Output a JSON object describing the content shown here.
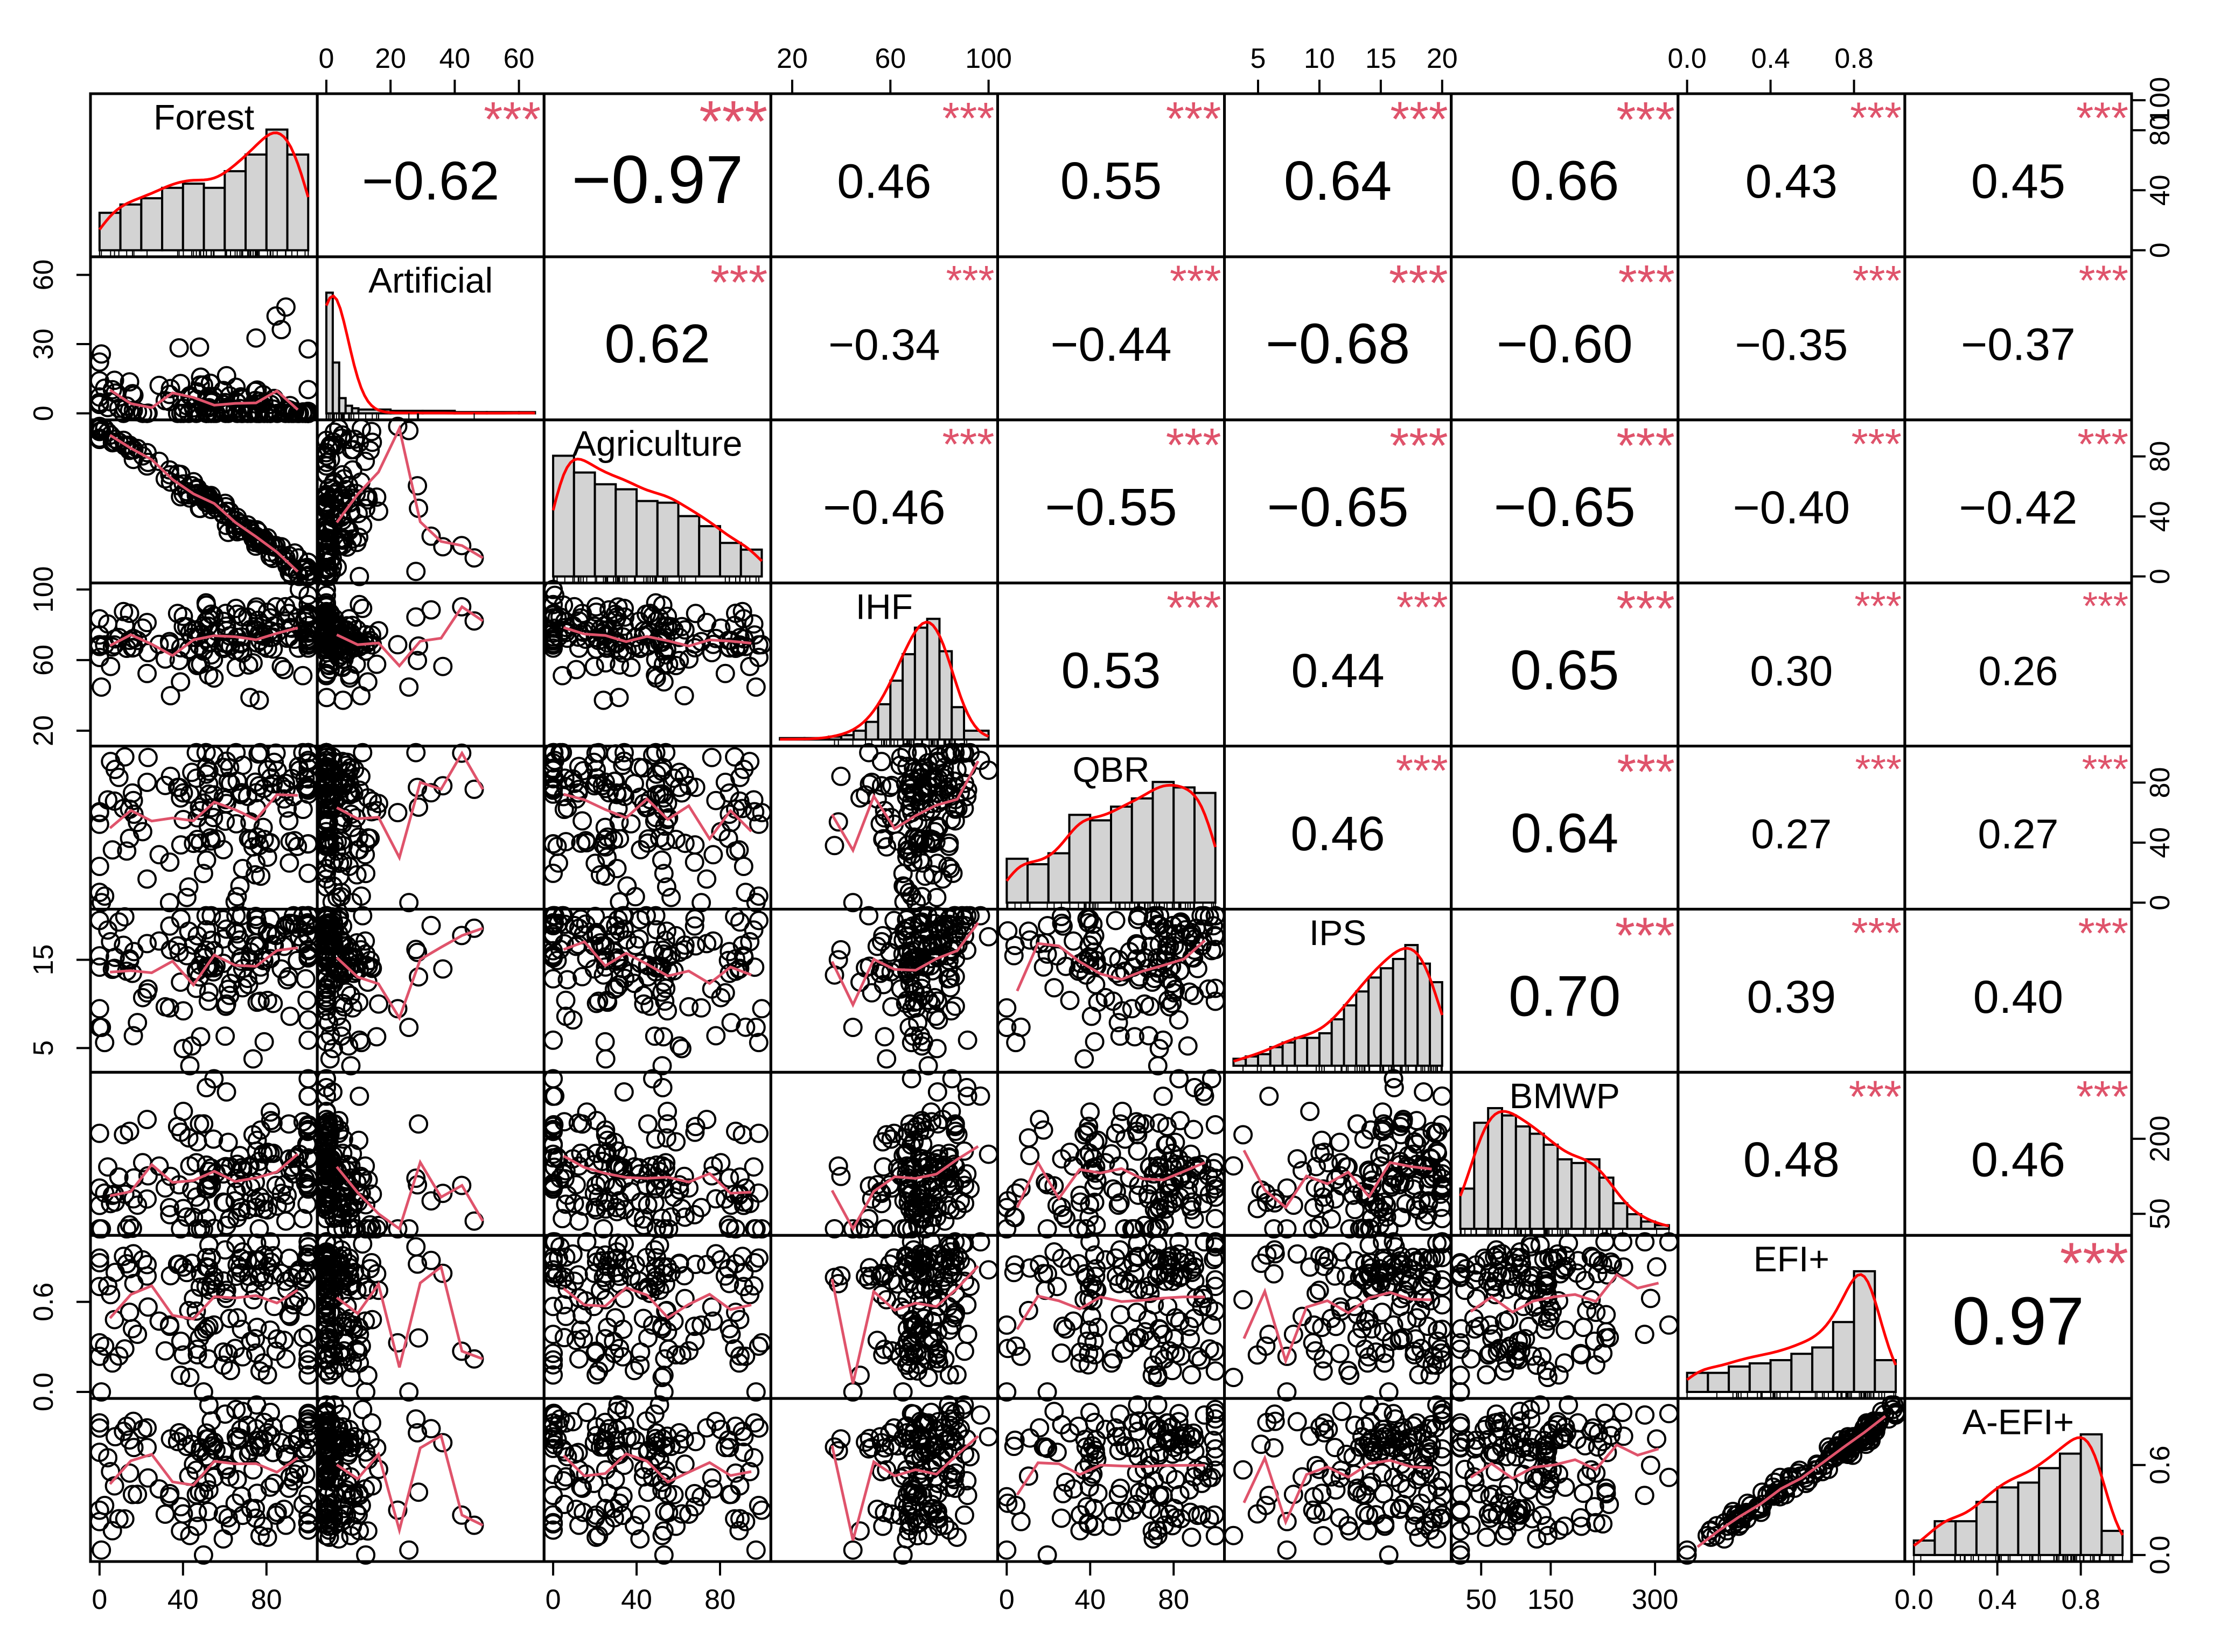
{
  "chart_data": {
    "type": "scatter",
    "layout": "scatterplot-matrix",
    "title": "",
    "variables": [
      "Forest",
      "Artificial",
      "Agriculture",
      "IHF",
      "QBR",
      "IPS",
      "BMWP",
      "EFI+",
      "A-EFI+"
    ],
    "ranges": [
      [
        0,
        100
      ],
      [
        0,
        65
      ],
      [
        0,
        100
      ],
      [
        15,
        100
      ],
      [
        0,
        100
      ],
      [
        3,
        20
      ],
      [
        20,
        320
      ],
      [
        0,
        1
      ],
      [
        0,
        1
      ]
    ],
    "axis_ticks": [
      {
        "variable": "Forest",
        "side": "bottom",
        "ticks": [
          "0",
          "40",
          "80"
        ]
      },
      {
        "variable": "Artificial",
        "side": "top",
        "ticks": [
          "0",
          "20",
          "40",
          "60"
        ]
      },
      {
        "variable": "Artificial",
        "side": "left",
        "ticks": [
          "0",
          "30",
          "60"
        ]
      },
      {
        "variable": "Agriculture",
        "side": "bottom",
        "ticks": [
          "0",
          "40",
          "80"
        ]
      },
      {
        "variable": "Agriculture",
        "side": "right",
        "ticks": [
          "0",
          "40",
          "80"
        ]
      },
      {
        "variable": "IHF",
        "side": "top",
        "ticks": [
          "20",
          "60",
          "100"
        ]
      },
      {
        "variable": "IHF",
        "side": "left",
        "ticks": [
          "20",
          "60",
          "100"
        ]
      },
      {
        "variable": "QBR",
        "side": "bottom",
        "ticks": [
          "0",
          "40",
          "80"
        ]
      },
      {
        "variable": "QBR",
        "side": "right",
        "ticks": [
          "0",
          "40",
          "80"
        ]
      },
      {
        "variable": "IPS",
        "side": "top",
        "ticks": [
          "5",
          "10",
          "15",
          "20"
        ]
      },
      {
        "variable": "IPS",
        "side": "left",
        "ticks": [
          "5",
          "15"
        ]
      },
      {
        "variable": "BMWP",
        "side": "bottom",
        "ticks": [
          "50",
          "150",
          "300"
        ]
      },
      {
        "variable": "BMWP",
        "side": "right",
        "ticks": [
          "50",
          "200"
        ]
      },
      {
        "variable": "EFI+",
        "side": "top",
        "ticks": [
          "0.0",
          "0.4",
          "0.8"
        ]
      },
      {
        "variable": "EFI+",
        "side": "left",
        "ticks": [
          "0.0",
          "0.6"
        ]
      },
      {
        "variable": "A-EFI+",
        "side": "bottom",
        "ticks": [
          "0.0",
          "0.4",
          "0.8"
        ]
      },
      {
        "variable": "A-EFI+",
        "side": "right",
        "ticks": [
          "0.0",
          "0.6"
        ]
      },
      {
        "variable": "Forest",
        "side": "right",
        "ticks": [
          "0",
          "40",
          "80",
          "100"
        ]
      }
    ],
    "correlations": [
      {
        "pair": [
          "Forest",
          "Artificial"
        ],
        "r": "−0.62",
        "stars": "***"
      },
      {
        "pair": [
          "Forest",
          "Agriculture"
        ],
        "r": "−0.97",
        "stars": "***"
      },
      {
        "pair": [
          "Forest",
          "IHF"
        ],
        "r": "0.46",
        "stars": "***"
      },
      {
        "pair": [
          "Forest",
          "QBR"
        ],
        "r": "0.55",
        "stars": "***"
      },
      {
        "pair": [
          "Forest",
          "IPS"
        ],
        "r": "0.64",
        "stars": "***"
      },
      {
        "pair": [
          "Forest",
          "BMWP"
        ],
        "r": "0.66",
        "stars": "***"
      },
      {
        "pair": [
          "Forest",
          "EFI+"
        ],
        "r": "0.43",
        "stars": "***"
      },
      {
        "pair": [
          "Forest",
          "A-EFI+"
        ],
        "r": "0.45",
        "stars": "***"
      },
      {
        "pair": [
          "Artificial",
          "Agriculture"
        ],
        "r": "0.62",
        "stars": "***"
      },
      {
        "pair": [
          "Artificial",
          "IHF"
        ],
        "r": "−0.34",
        "stars": "***"
      },
      {
        "pair": [
          "Artificial",
          "QBR"
        ],
        "r": "−0.44",
        "stars": "***"
      },
      {
        "pair": [
          "Artificial",
          "IPS"
        ],
        "r": "−0.68",
        "stars": "***"
      },
      {
        "pair": [
          "Artificial",
          "BMWP"
        ],
        "r": "−0.60",
        "stars": "***"
      },
      {
        "pair": [
          "Artificial",
          "EFI+"
        ],
        "r": "−0.35",
        "stars": "***"
      },
      {
        "pair": [
          "Artificial",
          "A-EFI+"
        ],
        "r": "−0.37",
        "stars": "***"
      },
      {
        "pair": [
          "Agriculture",
          "IHF"
        ],
        "r": "−0.46",
        "stars": "***"
      },
      {
        "pair": [
          "Agriculture",
          "QBR"
        ],
        "r": "−0.55",
        "stars": "***"
      },
      {
        "pair": [
          "Agriculture",
          "IPS"
        ],
        "r": "−0.65",
        "stars": "***"
      },
      {
        "pair": [
          "Agriculture",
          "BMWP"
        ],
        "r": "−0.65",
        "stars": "***"
      },
      {
        "pair": [
          "Agriculture",
          "EFI+"
        ],
        "r": "−0.40",
        "stars": "***"
      },
      {
        "pair": [
          "Agriculture",
          "A-EFI+"
        ],
        "r": "−0.42",
        "stars": "***"
      },
      {
        "pair": [
          "IHF",
          "QBR"
        ],
        "r": "0.53",
        "stars": "***"
      },
      {
        "pair": [
          "IHF",
          "IPS"
        ],
        "r": "0.44",
        "stars": "***"
      },
      {
        "pair": [
          "IHF",
          "BMWP"
        ],
        "r": "0.65",
        "stars": "***"
      },
      {
        "pair": [
          "IHF",
          "EFI+"
        ],
        "r": "0.30",
        "stars": "***"
      },
      {
        "pair": [
          "IHF",
          "A-EFI+"
        ],
        "r": "0.26",
        "stars": "***"
      },
      {
        "pair": [
          "QBR",
          "IPS"
        ],
        "r": "0.46",
        "stars": "***"
      },
      {
        "pair": [
          "QBR",
          "BMWP"
        ],
        "r": "0.64",
        "stars": "***"
      },
      {
        "pair": [
          "QBR",
          "EFI+"
        ],
        "r": "0.27",
        "stars": "***"
      },
      {
        "pair": [
          "QBR",
          "A-EFI+"
        ],
        "r": "0.27",
        "stars": "***"
      },
      {
        "pair": [
          "IPS",
          "BMWP"
        ],
        "r": "0.70",
        "stars": "***"
      },
      {
        "pair": [
          "IPS",
          "EFI+"
        ],
        "r": "0.39",
        "stars": "***"
      },
      {
        "pair": [
          "IPS",
          "A-EFI+"
        ],
        "r": "0.40",
        "stars": "***"
      },
      {
        "pair": [
          "BMWP",
          "EFI+"
        ],
        "r": "0.48",
        "stars": "***"
      },
      {
        "pair": [
          "BMWP",
          "A-EFI+"
        ],
        "r": "0.46",
        "stars": "***"
      },
      {
        "pair": [
          "EFI+",
          "A-EFI+"
        ],
        "r": "0.97",
        "stars": "***"
      }
    ],
    "histograms": [
      {
        "variable": "Forest",
        "breaks": [
          0,
          10,
          20,
          30,
          40,
          50,
          60,
          70,
          80,
          90,
          100
        ],
        "counts": [
          18,
          22,
          25,
          30,
          32,
          30,
          38,
          46,
          58,
          46
        ]
      },
      {
        "variable": "Artificial",
        "breaks": [
          0,
          2,
          4,
          6,
          8,
          10,
          20,
          30,
          40,
          50,
          60,
          65
        ],
        "counts": [
          95,
          40,
          12,
          6,
          4,
          3,
          2,
          2,
          1,
          1,
          1
        ]
      },
      {
        "variable": "Agriculture",
        "breaks": [
          0,
          10,
          20,
          30,
          40,
          50,
          60,
          70,
          80,
          90,
          100
        ],
        "counts": [
          72,
          62,
          55,
          52,
          45,
          44,
          36,
          30,
          20,
          16
        ]
      },
      {
        "variable": "IHF",
        "breaks": [
          15,
          25,
          35,
          40,
          45,
          50,
          55,
          60,
          65,
          70,
          75,
          80,
          85,
          90,
          100
        ],
        "counts": [
          1,
          1,
          2,
          3,
          6,
          12,
          24,
          40,
          58,
          76,
          82,
          60,
          22,
          6
        ]
      },
      {
        "variable": "QBR",
        "breaks": [
          0,
          10,
          20,
          30,
          40,
          50,
          60,
          70,
          80,
          90,
          100
        ],
        "counts": [
          16,
          14,
          18,
          32,
          30,
          35,
          38,
          44,
          42,
          40
        ]
      },
      {
        "variable": "IPS",
        "breaks": [
          3,
          4,
          5,
          6,
          7,
          8,
          9,
          10,
          11,
          12,
          13,
          14,
          15,
          16,
          17,
          18,
          19,
          20
        ],
        "counts": [
          3,
          4,
          5,
          8,
          10,
          12,
          12,
          14,
          20,
          26,
          32,
          38,
          42,
          46,
          52,
          44,
          36
        ]
      },
      {
        "variable": "BMWP",
        "breaks": [
          20,
          40,
          60,
          80,
          100,
          120,
          140,
          160,
          180,
          200,
          220,
          240,
          260,
          280,
          300,
          320
        ],
        "counts": [
          22,
          58,
          66,
          62,
          56,
          52,
          46,
          38,
          36,
          38,
          28,
          14,
          8,
          4,
          2
        ]
      },
      {
        "variable": "EFI+",
        "breaks": [
          0,
          0.1,
          0.2,
          0.3,
          0.4,
          0.5,
          0.6,
          0.7,
          0.8,
          0.9,
          1.0
        ],
        "counts": [
          6,
          6,
          8,
          9,
          10,
          12,
          14,
          22,
          38,
          10
        ]
      },
      {
        "variable": "A-EFI+",
        "breaks": [
          0,
          0.1,
          0.2,
          0.3,
          0.4,
          0.5,
          0.6,
          0.7,
          0.8,
          0.9,
          1.0
        ],
        "counts": [
          6,
          14,
          14,
          22,
          28,
          30,
          36,
          42,
          50,
          10
        ]
      }
    ],
    "point_color": "#000000",
    "smooth_color": "#DF536B",
    "density_color": "#FF0000",
    "stars_color": "#DF536B",
    "bar_color": "#D3D3D3"
  }
}
